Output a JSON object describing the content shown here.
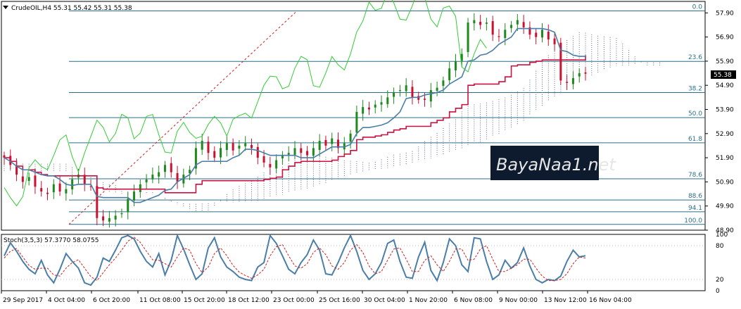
{
  "header": {
    "symbol_line": "CrudeOIL,H4  55.31 55.42 55.31 55.38",
    "stoch_label": "Stoch(3,5,3) 57.3770 58.0755"
  },
  "price_badge": "55.38",
  "watermark": "BayaNaa1.net",
  "colors": {
    "candle_up": "#1e8a1e",
    "candle_down": "#cc1030",
    "kijun": "#cc1040",
    "tenkan": "#4a7ea8",
    "chikou": "#33cc33",
    "cloud": "#5a6a8a",
    "fib_line": "#2a6f8a",
    "stoch_main": "#4a7ea8",
    "stoch_signal": "#cc2020"
  },
  "chart_data": {
    "type": "candlestick",
    "symbol": "CrudeOIL",
    "timeframe": "H4",
    "ylim": [
      48.9,
      58.2
    ],
    "y_ticks": [
      "57.90",
      "56.90",
      "55.90",
      "54.90",
      "53.90",
      "52.90",
      "51.90",
      "50.90",
      "49.90",
      "48.90"
    ],
    "x_ticks": [
      "29 Sep 2017",
      "4 Oct 04:00",
      "6 Oct 20:00",
      "11 Oct 08:00",
      "15 Oct 20:00",
      "18 Oct 12:00",
      "23 Oct 00:00",
      "25 Oct 16:00",
      "30 Oct 04:00",
      "1 Nov 20:00",
      "6 Nov 08:00",
      "9 Nov 00:00",
      "13 Nov 12:00",
      "16 Nov 04:00"
    ],
    "fibonacci": {
      "high": 57.98,
      "low": 49.14,
      "levels": [
        {
          "label": "0.0",
          "price": 57.98
        },
        {
          "label": "23.6",
          "price": 55.89
        },
        {
          "label": "38.2",
          "price": 54.6
        },
        {
          "label": "50.0",
          "price": 53.56
        },
        {
          "label": "61.8",
          "price": 52.52
        },
        {
          "label": "78.6",
          "price": 51.03
        },
        {
          "label": "88.6",
          "price": 50.15
        },
        {
          "label": "94.1",
          "price": 49.66
        },
        {
          "label": "100.0",
          "price": 49.14
        }
      ]
    },
    "close": [
      51.9,
      51.6,
      51.2,
      50.9,
      51.1,
      50.7,
      50.5,
      50.4,
      50.8,
      50.5,
      50.6,
      51.0,
      51.2,
      50.8,
      50.7,
      49.4,
      49.3,
      49.4,
      49.5,
      49.6,
      50.2,
      50.5,
      50.8,
      51.0,
      51.2,
      51.3,
      51.6,
      51.3,
      50.9,
      51.2,
      51.4,
      52.3,
      52.6,
      52.1,
      51.9,
      52.3,
      52.5,
      52.2,
      52.4,
      52.5,
      52.3,
      51.9,
      51.7,
      51.5,
      51.8,
      52.0,
      52.1,
      52.3,
      52.1,
      52.0,
      52.3,
      52.6,
      52.4,
      52.7,
      52.3,
      52.5,
      52.9,
      53.8,
      54.0,
      53.9,
      54.1,
      54.2,
      54.4,
      54.6,
      54.7,
      54.9,
      54.4,
      54.3,
      54.3,
      54.7,
      54.8,
      55.1,
      55.6,
      55.9,
      56.2,
      57.5,
      57.6,
      57.4,
      57.5,
      57.0,
      56.9,
      57.2,
      57.4,
      57.6,
      57.3,
      57.0,
      56.9,
      57.2,
      56.8,
      56.6,
      55.1,
      55.0,
      55.2,
      55.4,
      55.38
    ],
    "stochastic": {
      "main": [
        62,
        85,
        70,
        52,
        38,
        30,
        54,
        28,
        14,
        38,
        66,
        52,
        40,
        14,
        10,
        24,
        58,
        52,
        72,
        94,
        98,
        92,
        70,
        52,
        42,
        66,
        28,
        54,
        98,
        74,
        46,
        20,
        30,
        76,
        94,
        60,
        42,
        34,
        24,
        20,
        18,
        42,
        50,
        98,
        84,
        62,
        38,
        30,
        50,
        64,
        90,
        72,
        30,
        28,
        50,
        76,
        98,
        70,
        36,
        20,
        30,
        50,
        84,
        90,
        52,
        24,
        22,
        60,
        86,
        36,
        18,
        50,
        92,
        80,
        46,
        34,
        94,
        92,
        52,
        20,
        28,
        54,
        40,
        50,
        76,
        44,
        20,
        14,
        20,
        18,
        26,
        52,
        72,
        60,
        62
      ],
      "signal": [
        58,
        70,
        75,
        60,
        45,
        38,
        40,
        40,
        28,
        26,
        40,
        50,
        55,
        40,
        25,
        18,
        32,
        46,
        58,
        72,
        88,
        95,
        86,
        70,
        55,
        54,
        48,
        42,
        60,
        76,
        72,
        48,
        32,
        42,
        66,
        76,
        62,
        45,
        33,
        27,
        22,
        28,
        38,
        62,
        78,
        82,
        62,
        44,
        40,
        48,
        68,
        76,
        64,
        44,
        38,
        50,
        72,
        82,
        68,
        44,
        30,
        34,
        54,
        74,
        76,
        56,
        34,
        34,
        54,
        62,
        46,
        34,
        52,
        74,
        74,
        54,
        56,
        74,
        80,
        56,
        34,
        34,
        40,
        46,
        56,
        56,
        40,
        26,
        18,
        18,
        20,
        30,
        48,
        60,
        58
      ]
    },
    "stoch_ylim": [
      0,
      100
    ],
    "stoch_ticks": [
      "100",
      "80",
      "20",
      "0"
    ]
  }
}
